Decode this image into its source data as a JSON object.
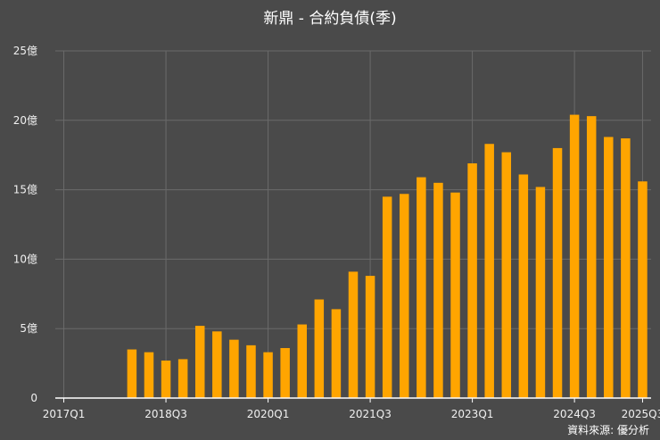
{
  "colors": {
    "background": "#4a4a4a",
    "bar": "#ffa500",
    "grid": "#6a6a6a",
    "axis": "#ffffff",
    "text": "#f0f0f0"
  },
  "source": "資料來源: 優分析",
  "chart_data": {
    "type": "bar",
    "title": "新鼎 - 合約負債(季)",
    "xlabel": "",
    "ylabel": "",
    "ylim": [
      0,
      25
    ],
    "y_ticks": [
      {
        "value": 0,
        "label": "0"
      },
      {
        "value": 5,
        "label": "5億"
      },
      {
        "value": 10,
        "label": "10億"
      },
      {
        "value": 15,
        "label": "15億"
      },
      {
        "value": 20,
        "label": "20億"
      },
      {
        "value": 25,
        "label": "25億"
      }
    ],
    "x_tick_labels": [
      "2017Q1",
      "2018Q3",
      "2020Q1",
      "2021Q3",
      "2023Q1",
      "2024Q3",
      "2025Q3"
    ],
    "grid": true,
    "legend": "none",
    "categories": [
      "2017Q1",
      "2017Q2",
      "2017Q3",
      "2017Q4",
      "2018Q1",
      "2018Q2",
      "2018Q3",
      "2018Q4",
      "2019Q1",
      "2019Q2",
      "2019Q3",
      "2019Q4",
      "2020Q1",
      "2020Q2",
      "2020Q3",
      "2020Q4",
      "2021Q1",
      "2021Q2",
      "2021Q3",
      "2021Q4",
      "2022Q1",
      "2022Q2",
      "2022Q3",
      "2022Q4",
      "2023Q1",
      "2023Q2",
      "2023Q3",
      "2023Q4",
      "2024Q1",
      "2024Q2",
      "2024Q3",
      "2024Q4",
      "2025Q1",
      "2025Q2",
      "2025Q3"
    ],
    "values": [
      0,
      0,
      0,
      0,
      3.5,
      3.3,
      2.7,
      2.8,
      5.2,
      4.8,
      4.2,
      3.8,
      3.3,
      3.6,
      5.3,
      7.1,
      6.4,
      9.1,
      8.8,
      14.5,
      14.7,
      15.9,
      15.5,
      14.8,
      16.9,
      18.3,
      17.7,
      16.1,
      15.2,
      18.0,
      20.4,
      20.3,
      18.8,
      18.7,
      15.6
    ]
  }
}
